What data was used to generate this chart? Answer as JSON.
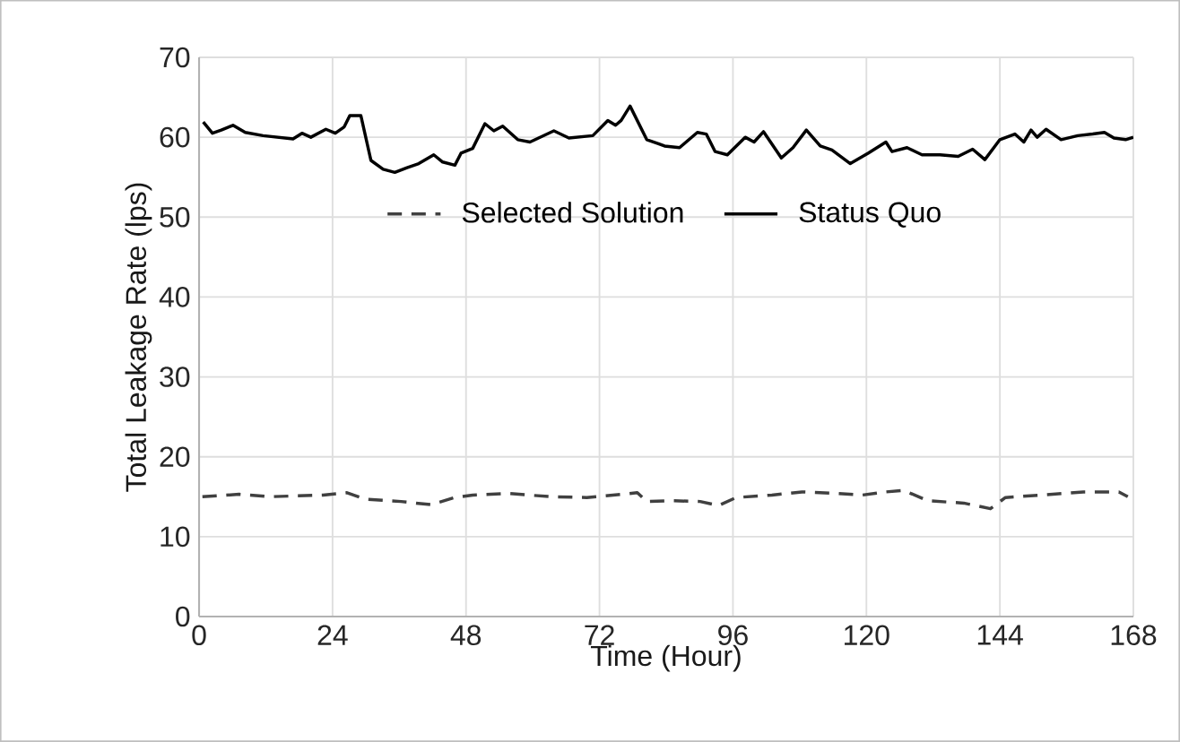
{
  "chart_data": {
    "type": "line",
    "xlabel": "Time (Hour)",
    "ylabel": "Total Leakage Rate (lps)",
    "xlim": [
      0,
      168
    ],
    "xticks": [
      0,
      24,
      48,
      72,
      96,
      120,
      144,
      168
    ],
    "ylim": [
      0,
      70
    ],
    "yticks": [
      0,
      10,
      20,
      30,
      40,
      50,
      60,
      70
    ],
    "grid": true,
    "legend": "center",
    "marker": "none",
    "series": [
      {
        "name": "Selected Solution",
        "color": "#404040",
        "line_style": "dashed",
        "x": [
          0.6,
          7.2,
          12.6,
          22.3,
          26.6,
          29.9,
          36.3,
          41.7,
          46,
          49.2,
          55.7,
          63.2,
          69.7,
          76.1,
          78.8,
          80.5,
          84.8,
          90.1,
          93.4,
          96.6,
          103,
          108.4,
          114.9,
          119.2,
          123.5,
          126.7,
          131,
          137.5,
          142.3,
          145,
          151.4,
          159,
          165.4,
          167
        ],
        "values": [
          15.0,
          15.3,
          15.0,
          15.2,
          15.5,
          14.7,
          14.4,
          14.0,
          14.9,
          15.2,
          15.4,
          15.0,
          14.9,
          15.3,
          15.5,
          14.4,
          14.5,
          14.4,
          13.9,
          14.9,
          15.2,
          15.6,
          15.4,
          15.2,
          15.6,
          15.8,
          14.5,
          14.2,
          13.5,
          14.9,
          15.2,
          15.6,
          15.6,
          15.0
        ]
      },
      {
        "name": "Status Quo",
        "color": "#000000",
        "line_style": "solid",
        "x": [
          0.75,
          2.4,
          4.0,
          6.1,
          8.3,
          11.5,
          16.9,
          18.5,
          20.1,
          22.8,
          24.5,
          26.1,
          27.1,
          29.1,
          30.9,
          33.1,
          35.2,
          37.4,
          39.5,
          42.2,
          43.8,
          46.0,
          47.1,
          49.2,
          51.4,
          53.0,
          54.6,
          57.3,
          59.5,
          63.8,
          66.5,
          70.8,
          73.5,
          74.9,
          75.9,
          77.5,
          80.5,
          82.6,
          83.7,
          86.4,
          89.6,
          91.2,
          92.8,
          95.0,
          98.2,
          99.8,
          101.5,
          104.7,
          106.8,
          109.2,
          111.7,
          113.8,
          117.1,
          120.3,
          123.5,
          124.6,
          127.3,
          130.0,
          133.2,
          136.5,
          139.1,
          141.3,
          144.0,
          146.7,
          148.3,
          149.6,
          150.7,
          152.3,
          155.0,
          158.0,
          160.7,
          162.8,
          164.5,
          166.6,
          168
        ],
        "values": [
          61.9,
          60.5,
          60.9,
          61.5,
          60.6,
          60.2,
          59.8,
          60.5,
          60.0,
          61.0,
          60.5,
          61.3,
          62.7,
          62.7,
          57.1,
          56.0,
          55.6,
          56.2,
          56.7,
          57.8,
          56.9,
          56.5,
          58.0,
          58.6,
          61.7,
          60.8,
          61.4,
          59.7,
          59.4,
          60.8,
          59.9,
          60.2,
          62.1,
          61.5,
          62.1,
          63.9,
          59.7,
          59.2,
          58.9,
          58.7,
          60.6,
          60.4,
          58.2,
          57.8,
          60.0,
          59.4,
          60.7,
          57.4,
          58.7,
          60.9,
          58.9,
          58.4,
          56.7,
          58.0,
          59.4,
          58.2,
          58.7,
          57.8,
          57.8,
          57.6,
          58.5,
          57.2,
          59.7,
          60.4,
          59.4,
          60.9,
          60.0,
          61.0,
          59.7,
          60.2,
          60.4,
          60.6,
          59.9,
          59.7,
          60.0
        ]
      }
    ]
  }
}
